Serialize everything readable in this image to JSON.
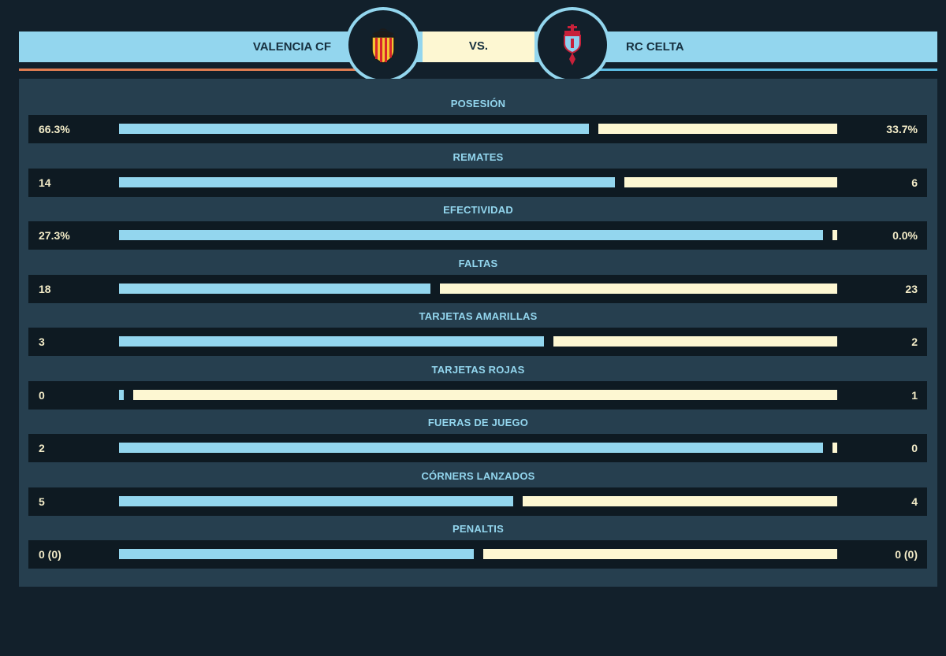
{
  "header": {
    "home_team": "VALENCIA CF",
    "away_team": "RC CELTA",
    "vs": "VS."
  },
  "colors": {
    "home_bar": "#93d6ee",
    "away_bar": "#fdf7d2",
    "home_accent": "#e07d52",
    "away_accent": "#5dbde4",
    "panel": "#263f4f",
    "background": "#12202b"
  },
  "icons": {
    "home_crest": "valencia-cf-crest-icon",
    "away_crest": "rc-celta-crest-icon"
  },
  "stats": [
    {
      "label": "POSESIÓN",
      "home": "66.3%",
      "away": "33.7%",
      "home_share": 0.663
    },
    {
      "label": "REMATES",
      "home": "14",
      "away": "6",
      "home_share": 0.7
    },
    {
      "label": "EFECTIVIDAD",
      "home": "27.3%",
      "away": "0.0%",
      "home_share": 1.0
    },
    {
      "label": "FALTAS",
      "home": "18",
      "away": "23",
      "home_share": 0.439
    },
    {
      "label": "TARJETAS AMARILLAS",
      "home": "3",
      "away": "2",
      "home_share": 0.6
    },
    {
      "label": "TARJETAS ROJAS",
      "home": "0",
      "away": "1",
      "home_share": 0.0
    },
    {
      "label": "FUERAS DE JUEGO",
      "home": "2",
      "away": "0",
      "home_share": 1.0
    },
    {
      "label": "CÓRNERS LANZADOS",
      "home": "5",
      "away": "4",
      "home_share": 0.556
    },
    {
      "label": "PENALTIS",
      "home": "0 (0)",
      "away": "0 (0)",
      "home_share": 0.5
    }
  ]
}
